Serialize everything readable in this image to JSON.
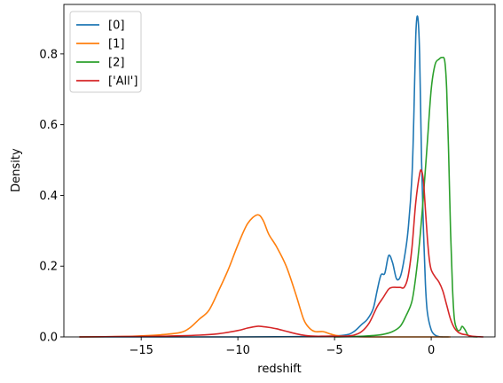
{
  "chart_data": {
    "type": "line",
    "title": "",
    "xlabel": "redshift",
    "ylabel": "Density",
    "xlim": [
      -19.0,
      3.3
    ],
    "ylim": [
      0,
      0.94
    ],
    "xticks": [
      -15,
      -10,
      -5,
      0
    ],
    "xtick_labels": [
      "−15",
      "−10",
      "−5",
      "0"
    ],
    "yticks": [
      0.0,
      0.2,
      0.4,
      0.6,
      0.8
    ],
    "ytick_labels": [
      "0.0",
      "0.2",
      "0.4",
      "0.6",
      "0.8"
    ],
    "grid": false,
    "legend_position": "upper-left",
    "series": [
      {
        "name": "[0]",
        "color": "#1f77b4",
        "x": [
          -18.2,
          -10.0,
          -6.0,
          -4.5,
          -4.0,
          -3.6,
          -3.3,
          -3.0,
          -2.8,
          -2.6,
          -2.4,
          -2.2,
          -2.0,
          -1.8,
          -1.6,
          -1.4,
          -1.2,
          -1.0,
          -0.9,
          -0.8,
          -0.7,
          -0.6,
          -0.5,
          -0.4,
          -0.3,
          -0.2,
          0.0,
          0.2,
          0.4,
          0.6,
          0.9
        ],
        "y": [
          0.0,
          0.0,
          0.001,
          0.005,
          0.015,
          0.035,
          0.05,
          0.08,
          0.13,
          0.175,
          0.18,
          0.23,
          0.21,
          0.165,
          0.17,
          0.22,
          0.3,
          0.45,
          0.62,
          0.85,
          0.905,
          0.8,
          0.5,
          0.3,
          0.15,
          0.07,
          0.02,
          0.005,
          0.001,
          0.0,
          0.0
        ]
      },
      {
        "name": "[1]",
        "color": "#ff7f0e",
        "x": [
          -18.2,
          -16.0,
          -15.0,
          -14.0,
          -13.0,
          -12.5,
          -12.0,
          -11.5,
          -11.0,
          -10.5,
          -10.0,
          -9.5,
          -9.0,
          -8.7,
          -8.4,
          -8.0,
          -7.5,
          -7.0,
          -6.6,
          -6.3,
          -6.0,
          -5.6,
          -5.2,
          -4.8,
          -4.0,
          -3.0,
          1.0
        ],
        "y": [
          0.0,
          0.001,
          0.003,
          0.006,
          0.012,
          0.025,
          0.05,
          0.075,
          0.13,
          0.19,
          0.26,
          0.32,
          0.345,
          0.33,
          0.29,
          0.255,
          0.2,
          0.12,
          0.05,
          0.025,
          0.015,
          0.015,
          0.008,
          0.003,
          0.001,
          0.0,
          0.0
        ]
      },
      {
        "name": "[2]",
        "color": "#2ca02c",
        "x": [
          -5.0,
          -4.0,
          -3.0,
          -2.5,
          -2.0,
          -1.6,
          -1.3,
          -1.0,
          -0.8,
          -0.6,
          -0.4,
          -0.2,
          0.0,
          0.2,
          0.4,
          0.55,
          0.7,
          0.8,
          0.9,
          1.0,
          1.1,
          1.2,
          1.35,
          1.5,
          1.6,
          1.75,
          1.9,
          2.1,
          2.4
        ],
        "y": [
          0.0,
          0.001,
          0.004,
          0.007,
          0.015,
          0.03,
          0.06,
          0.1,
          0.17,
          0.27,
          0.4,
          0.55,
          0.7,
          0.77,
          0.785,
          0.79,
          0.78,
          0.7,
          0.52,
          0.3,
          0.14,
          0.05,
          0.02,
          0.02,
          0.03,
          0.02,
          0.005,
          0.001,
          0.0
        ]
      },
      {
        "name": "['All']",
        "color": "#d62728",
        "x": [
          -18.2,
          -16.0,
          -14.0,
          -12.0,
          -11.0,
          -10.0,
          -9.5,
          -9.0,
          -8.7,
          -8.4,
          -8.0,
          -7.5,
          -7.0,
          -6.5,
          -6.0,
          -5.5,
          -5.0,
          -4.5,
          -4.0,
          -3.6,
          -3.2,
          -2.8,
          -2.5,
          -2.2,
          -2.0,
          -1.8,
          -1.6,
          -1.4,
          -1.2,
          -1.0,
          -0.8,
          -0.6,
          -0.5,
          -0.4,
          -0.3,
          -0.2,
          -0.1,
          0.0,
          0.2,
          0.4,
          0.6,
          0.8,
          1.0,
          1.2,
          1.4,
          1.6,
          1.8,
          2.0,
          2.3,
          2.7
        ],
        "y": [
          0.0,
          0.001,
          0.002,
          0.005,
          0.009,
          0.018,
          0.025,
          0.03,
          0.029,
          0.027,
          0.023,
          0.016,
          0.009,
          0.004,
          0.002,
          0.002,
          0.002,
          0.002,
          0.005,
          0.015,
          0.04,
          0.085,
          0.11,
          0.135,
          0.14,
          0.14,
          0.14,
          0.14,
          0.17,
          0.25,
          0.38,
          0.46,
          0.47,
          0.44,
          0.36,
          0.28,
          0.22,
          0.19,
          0.17,
          0.155,
          0.13,
          0.09,
          0.05,
          0.025,
          0.013,
          0.008,
          0.006,
          0.003,
          0.001,
          0.0
        ]
      }
    ]
  }
}
